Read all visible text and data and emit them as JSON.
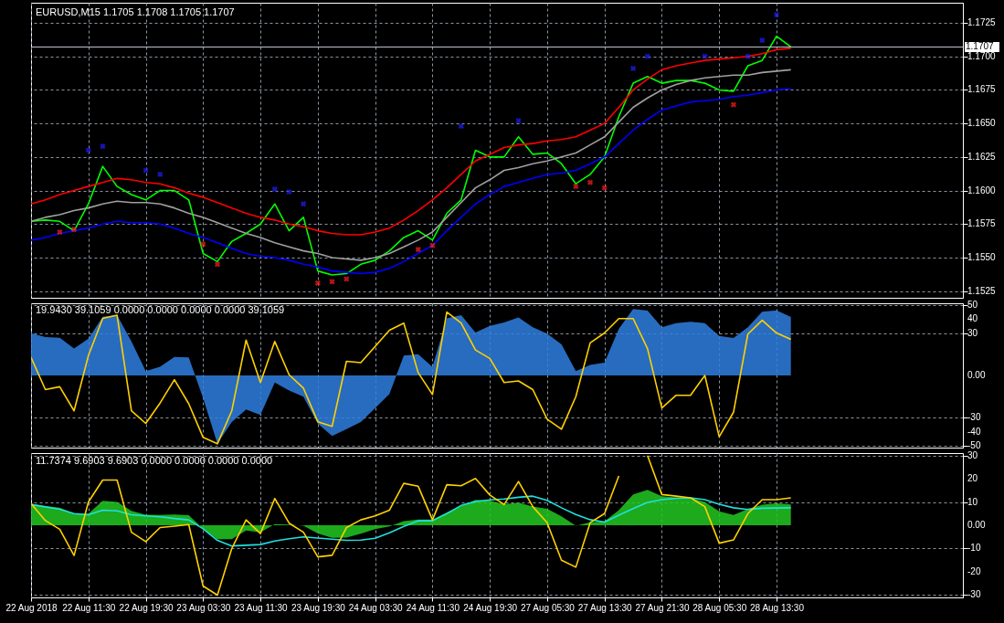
{
  "chart_data": [
    {
      "type": "line",
      "title": "EURUSD,M15  1.1705 1.1708 1.1705 1.1707",
      "grid": true,
      "tick_labels": "y",
      "categories": [
        null,
        null,
        null,
        null,
        null,
        null,
        null,
        null,
        null,
        null,
        null,
        null,
        null,
        null,
        null,
        null,
        null,
        null,
        null,
        null,
        null,
        null,
        null,
        null,
        null,
        null,
        null,
        null,
        null,
        null,
        null,
        null,
        null,
        null,
        null,
        null,
        null,
        null,
        null,
        null,
        null,
        null,
        null,
        null,
        null,
        null,
        null,
        null,
        null,
        null,
        null,
        null,
        null,
        null,
        null,
        null,
        null,
        null,
        null,
        null,
        null,
        null,
        null,
        null,
        null,
        null
      ],
      "ylim": [
        1.152,
        1.174
      ],
      "yticks": [
        1.1525,
        {
          "value": 1.155,
          "label": "1.1550"
        },
        1.1575,
        {
          "value": 1.16,
          "label": "1.1600"
        },
        1.1625,
        {
          "value": 1.165,
          "label": "1.1650"
        },
        1.1675,
        {
          "value": 1.17,
          "label": "1.1700"
        },
        1.1725
      ],
      "ref_lines": [
        {
          "axis": "y",
          "value": 1.1707,
          "label": "1.1707",
          "color": "#c0c8d0"
        }
      ],
      "series": [
        {
          "color": "#00ff00",
          "values": [
            1.1577,
            1.1578,
            1.1577,
            1.157,
            1.159,
            1.1618,
            1.1603,
            1.1597,
            1.1593,
            1.16,
            1.16,
            1.1593,
            1.1553,
            1.1547,
            1.1562,
            1.1568,
            1.1575,
            1.159,
            1.157,
            1.158,
            1.154,
            1.1537,
            1.1538,
            1.1545,
            1.1548,
            1.1555,
            1.1565,
            1.157,
            1.1563,
            1.1583,
            1.1593,
            1.163,
            1.1625,
            1.1625,
            1.164,
            1.1627,
            1.1628,
            1.162,
            1.1605,
            1.1612,
            1.1625,
            1.1655,
            1.168,
            1.1685,
            1.168,
            1.1682,
            1.1682,
            1.168,
            1.1675,
            1.1674,
            1.1693,
            1.1697,
            1.1715,
            1.1707,
            null,
            null,
            null,
            null,
            null,
            null,
            null,
            null,
            null,
            null,
            null,
            null
          ]
        },
        {
          "color": "#ff0000",
          "values": [
            1.159,
            1.1593,
            1.1597,
            1.16,
            1.1603,
            1.1606,
            1.1609,
            1.1608,
            1.1606,
            1.1605,
            1.1602,
            1.1598,
            1.1595,
            1.1591,
            1.1587,
            1.1583,
            1.158,
            1.1578,
            1.1575,
            1.1573,
            1.157,
            1.1568,
            1.1567,
            1.1567,
            1.1569,
            1.1572,
            1.1578,
            1.1585,
            1.1593,
            1.1602,
            1.1612,
            1.1622,
            1.1627,
            1.1632,
            1.1634,
            1.1635,
            1.1637,
            1.1638,
            1.164,
            1.1645,
            1.165,
            1.1662,
            1.1675,
            1.1683,
            1.169,
            1.1693,
            1.1695,
            1.1697,
            1.1698,
            1.1699,
            1.17,
            1.1702,
            1.1705,
            1.1706,
            null,
            null,
            null,
            null,
            null,
            null,
            null,
            null,
            null,
            null,
            null,
            null
          ]
        },
        {
          "color": "#a0a0a0",
          "values": [
            1.1577,
            1.158,
            1.1582,
            1.1585,
            1.1587,
            1.159,
            1.1592,
            1.1591,
            1.1591,
            1.159,
            1.1587,
            1.1583,
            1.158,
            1.1576,
            1.1572,
            1.1568,
            1.1565,
            1.1561,
            1.1558,
            1.1555,
            1.1553,
            1.155,
            1.1549,
            1.1548,
            1.155,
            1.1553,
            1.1558,
            1.1563,
            1.1569,
            1.158,
            1.1591,
            1.1602,
            1.1608,
            1.1615,
            1.1617,
            1.162,
            1.1622,
            1.1625,
            1.1628,
            1.1634,
            1.164,
            1.1651,
            1.1662,
            1.1669,
            1.1675,
            1.1679,
            1.1682,
            1.1684,
            1.1685,
            1.1686,
            1.1686,
            1.1688,
            1.1689,
            1.169,
            null,
            null,
            null,
            null,
            null,
            null,
            null,
            null,
            null,
            null,
            null,
            null
          ]
        },
        {
          "color": "#0000ff",
          "values": [
            1.1563,
            1.1565,
            1.1568,
            1.157,
            1.1572,
            1.1575,
            1.1577,
            1.1576,
            1.1576,
            1.1575,
            1.1572,
            1.1568,
            1.1565,
            1.1561,
            1.1557,
            1.1553,
            1.1551,
            1.155,
            1.1548,
            1.1545,
            1.1543,
            1.154,
            1.1539,
            1.1538,
            1.1539,
            1.1542,
            1.1547,
            1.1553,
            1.1559,
            1.157,
            1.158,
            1.159,
            1.1597,
            1.1603,
            1.1606,
            1.1609,
            1.1612,
            1.1613,
            1.1615,
            1.162,
            1.1625,
            1.1635,
            1.1645,
            1.1653,
            1.166,
            1.1663,
            1.1666,
            1.1667,
            1.1668,
            1.167,
            1.1671,
            1.1673,
            1.1675,
            1.1676,
            null,
            null,
            null,
            null,
            null,
            null,
            null,
            null,
            null,
            null,
            null,
            null
          ]
        },
        {
          "type": "scatter",
          "marker": "cross",
          "color": "#2020ff",
          "values": [
            null,
            null,
            null,
            null,
            1.163,
            1.1633,
            null,
            null,
            1.1615,
            1.1612,
            null,
            null,
            null,
            null,
            null,
            null,
            null,
            1.1601,
            1.1599,
            1.159,
            null,
            null,
            null,
            null,
            null,
            null,
            null,
            null,
            null,
            null,
            1.1648,
            null,
            null,
            null,
            1.1652,
            null,
            null,
            null,
            null,
            null,
            null,
            null,
            1.1691,
            1.17,
            null,
            null,
            null,
            1.17,
            null,
            null,
            1.17,
            1.1712,
            1.1731,
            null,
            null,
            null,
            null,
            null,
            null,
            null,
            null,
            null,
            null,
            null,
            null,
            null
          ]
        },
        {
          "type": "scatter",
          "marker": "cross",
          "color": "#ff2020",
          "values": [
            null,
            null,
            1.1569,
            1.1571,
            null,
            null,
            null,
            null,
            null,
            null,
            null,
            null,
            1.156,
            1.1545,
            null,
            null,
            null,
            null,
            null,
            null,
            1.1531,
            1.1532,
            1.1534,
            null,
            null,
            null,
            null,
            1.1556,
            1.1559,
            null,
            null,
            null,
            null,
            null,
            null,
            null,
            null,
            null,
            1.1603,
            1.1606,
            1.1602,
            null,
            null,
            null,
            null,
            null,
            null,
            null,
            null,
            1.1664,
            null,
            null,
            null,
            null,
            null,
            null,
            null,
            null,
            null,
            null,
            null,
            null,
            null,
            null,
            null,
            null
          ]
        }
      ]
    },
    {
      "type": "line",
      "title": "19.9430 39.1059 0.0000 0.0000 0.0000 0.0000 39.1059",
      "grid": true,
      "tick_labels": "y",
      "categories": [
        null,
        null,
        null,
        null,
        null,
        null,
        null,
        null,
        null,
        null,
        null,
        null,
        null,
        null,
        null,
        null,
        null,
        null,
        null,
        null,
        null,
        null,
        null,
        null,
        null,
        null,
        null,
        null,
        null,
        null,
        null,
        null,
        null,
        null,
        null,
        null,
        null,
        null,
        null,
        null,
        null,
        null,
        null,
        null,
        null,
        null,
        null,
        null,
        null,
        null,
        null,
        null,
        null,
        null,
        null,
        null,
        null,
        null,
        null,
        null,
        null,
        null,
        null,
        null,
        null,
        null
      ],
      "ylim": [
        -51,
        51
      ],
      "yticks": [
        50,
        40,
        30,
        {
          "value": 0,
          "label": "0.00"
        },
        -30,
        -40,
        -50
      ],
      "series": [
        {
          "type": "area",
          "color": "#2f7fe0",
          "values": [
            29.8,
            27.1,
            26.7,
            19,
            26,
            41.5,
            42.6,
            24,
            3,
            6.1,
            13,
            12.7,
            -16,
            -48.3,
            -33,
            -24,
            -28,
            -5,
            -10.6,
            -15,
            -34,
            -42.7,
            -38,
            -33,
            -23,
            -13,
            14,
            15,
            6,
            40.4,
            42.6,
            30.4,
            35,
            37.5,
            41,
            34,
            29.5,
            22,
            3,
            7.5,
            9,
            33,
            47,
            45.8,
            34,
            37,
            37.9,
            37,
            28,
            26.5,
            34,
            45,
            46,
            41.3,
            null,
            null,
            null,
            null,
            null,
            null,
            null,
            null,
            null,
            null,
            null,
            null
          ]
        },
        {
          "color": "#ffd000",
          "values": [
            12.7,
            -10,
            -8,
            -25,
            14,
            40.4,
            42.6,
            -25,
            -33.9,
            -19.5,
            -3,
            -20,
            -43.8,
            -48.3,
            -25,
            25,
            -5,
            24,
            0.5,
            -9,
            -32.7,
            -36,
            10,
            9,
            20.5,
            32,
            37,
            2,
            -13.5,
            44.8,
            37,
            18,
            12,
            -5,
            -3.9,
            -10,
            -30.9,
            -38,
            -15,
            23,
            30,
            40.2,
            40.2,
            19,
            -23,
            -14,
            -14,
            0,
            -43.3,
            -26,
            29.2,
            39,
            30,
            25.5,
            null,
            null,
            null,
            null,
            null,
            null,
            null,
            null,
            null,
            null,
            null,
            null
          ]
        }
      ]
    },
    {
      "type": "line",
      "title": "11.7374 9.6903 9.6903 0.0000 0.0000 0.0000 0.0000",
      "grid": true,
      "categories": [
        "22 Aug 2018",
        null,
        null,
        null,
        "22 Aug 11:30",
        null,
        null,
        null,
        "22 Aug 19:30",
        null,
        null,
        null,
        "23 Aug 03:30",
        null,
        null,
        null,
        "23 Aug 11:30",
        null,
        null,
        null,
        "23 Aug 19:30",
        null,
        null,
        null,
        "24 Aug 03:30",
        null,
        null,
        null,
        "24 Aug 11:30",
        null,
        null,
        null,
        "24 Aug 19:30",
        null,
        null,
        null,
        "27 Aug 05:30",
        null,
        null,
        null,
        "27 Aug 13:30",
        null,
        null,
        null,
        "27 Aug 21:30",
        null,
        null,
        null,
        "28 Aug 05:30",
        null,
        null,
        null,
        "28 Aug 13:30",
        null,
        null,
        null,
        null,
        null,
        null,
        null,
        null,
        null,
        null,
        null,
        null,
        null
      ],
      "ylim": [
        -31,
        31
      ],
      "yticks": [
        30,
        20,
        10,
        {
          "value": 0,
          "label": "0.00"
        },
        -10,
        -20,
        -30
      ],
      "series": [
        {
          "type": "area",
          "color": "#22c822",
          "values": [
            9.3,
            8.2,
            7.6,
            5,
            5,
            10.5,
            10,
            6.2,
            4.5,
            4.4,
            4.6,
            4.3,
            -1.5,
            -6,
            -6,
            -2.3,
            -3,
            0.5,
            0.3,
            -0.2,
            -3.5,
            -5.4,
            -5.3,
            -3.6,
            -1.7,
            -0.5,
            1.8,
            2.5,
            2.5,
            5.5,
            8.2,
            10.9,
            10.6,
            9,
            9.7,
            8,
            7.1,
            3.8,
            -0.2,
            1.3,
            1.7,
            6.5,
            13.2,
            15.2,
            12.5,
            12,
            11.8,
            10,
            6,
            4.4,
            7,
            8.8,
            9.4,
            8.9,
            null,
            null,
            null,
            null,
            null,
            null,
            null,
            null,
            null,
            null,
            null,
            null
          ]
        },
        {
          "color": "#20e0e0",
          "values": [
            8.9,
            7.9,
            6.9,
            5,
            4.5,
            6.5,
            6.2,
            4.5,
            4,
            3.6,
            2.9,
            2.3,
            -1.5,
            -6.5,
            -8.9,
            -8.6,
            -8.3,
            -6.8,
            -5.8,
            -5,
            -5.5,
            -6,
            -6.5,
            -6.4,
            -5.6,
            -3.2,
            -0.5,
            1.9,
            1.9,
            5,
            8.5,
            10.2,
            10.9,
            11.3,
            12,
            12.5,
            10.7,
            7.5,
            4.6,
            2.4,
            1.4,
            4.3,
            7.2,
            9.8,
            11,
            11.6,
            11.8,
            11,
            9,
            7.5,
            6.8,
            7.3,
            7.4,
            7.5,
            null,
            null,
            null,
            null,
            null,
            null,
            null,
            null,
            null,
            null,
            null,
            null
          ]
        },
        {
          "color": "#ffd000",
          "values": [
            9.3,
            2,
            -1.7,
            -13,
            10,
            19.4,
            19.4,
            -3,
            -7,
            -1,
            -0.4,
            0.3,
            -26.1,
            -30,
            -10,
            2.3,
            -3.6,
            11.5,
            0.9,
            -3,
            -13.6,
            -12.9,
            -1,
            2.3,
            4,
            6.5,
            18,
            16.8,
            2.3,
            17.4,
            17,
            20.1,
            13,
            8.9,
            18.8,
            8,
            1.1,
            -15,
            -18,
            1.1,
            5,
            21.2,
            null,
            29.9,
            13.2,
            12.5,
            11.8,
            8,
            -7.7,
            -6.3,
            5,
            11,
            11,
            11.8,
            null,
            null,
            null,
            null,
            null,
            null,
            null,
            null,
            null,
            null,
            null,
            null
          ]
        }
      ]
    }
  ]
}
